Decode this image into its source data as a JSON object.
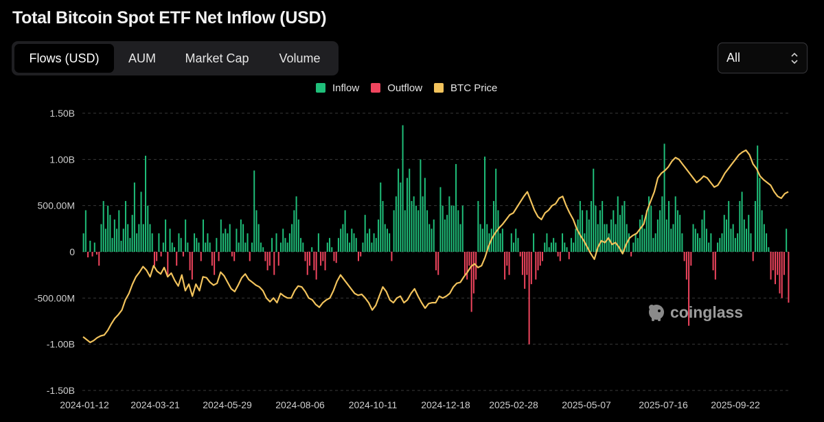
{
  "title": "Total Bitcoin Spot ETF Net Inflow (USD)",
  "tabs": [
    {
      "label": "Flows (USD)",
      "active": true
    },
    {
      "label": "AUM",
      "active": false
    },
    {
      "label": "Market Cap",
      "active": false
    },
    {
      "label": "Volume",
      "active": false
    }
  ],
  "range_select": {
    "value": "All"
  },
  "legend": [
    {
      "label": "Inflow",
      "color": "#1fbf7a"
    },
    {
      "label": "Outflow",
      "color": "#f0455e"
    },
    {
      "label": "BTC Price",
      "color": "#f2c35c"
    }
  ],
  "watermark": {
    "text": "coinglass",
    "icon": "coinglass-logo-icon"
  },
  "colors": {
    "inflow": "#1fbf7a",
    "outflow": "#f0455e",
    "price": "#f2c35c",
    "grid": "#3a3a3a",
    "axis_text": "#cfcfcf"
  },
  "chart_data": {
    "type": "bar",
    "title": "Total Bitcoin Spot ETF Net Inflow (USD)",
    "x_tick_labels": [
      "2024-01-12",
      "2024-03-21",
      "2024-05-29",
      "2024-08-06",
      "2024-10-11",
      "2024-12-18",
      "2025-02-28",
      "2025-05-07",
      "2025-07-16",
      "2025-09-22"
    ],
    "y_tick_labels": [
      "1.50B",
      "1.00B",
      "500.00M",
      "0",
      "-500.00M",
      "-1.00B",
      "-1.50B"
    ],
    "ylim": [
      -1500000000,
      1500000000
    ],
    "grid": "horizontal-dashed",
    "legend_position": "top-center",
    "series": [
      {
        "name": "Flows (USD)",
        "note_colors": "green for Inflow, red for Outflow",
        "values": [
          [
            0.2,
            0.45,
            -0.06,
            0.12,
            -0.05,
            0.1,
            -0.03,
            -0.15,
            0.3,
            0.55,
            0.25,
            0.5,
            0.4,
            0.15,
            0.35,
            0.25,
            0.45,
            0.12,
            0.25,
            0.55,
            0.3,
            0.15,
            0.4,
            0.75,
            0.2,
            0.3,
            0.65,
            0.3,
            1.04,
            0.5,
            0.3,
            0.2,
            -0.15,
            -0.1,
            0.2,
            -0.05,
            0.1,
            0.35,
            -0.25,
            0.25,
            0.1,
            0.05,
            -0.15,
            0.2,
            0.15,
            -0.05,
            0.35,
            0.1,
            -0.2,
            -0.3,
            0.2,
            0.15,
            0.1,
            -0.1,
            0.35,
            0.1,
            0.2,
            0.1,
            -0.15,
            -0.25,
            0.15,
            -0.1,
            0.35,
            0.2,
            0.25,
            0.2,
            0.3,
            -0.05,
            -0.1,
            0.25,
            0.1,
            0.35,
            0.3,
            0.1,
            0.2,
            -0.1,
            0.1,
            0.88,
            0.45,
            0.3,
            0.1,
            0.05,
            -0.1,
            -0.2,
            -0.15,
            0.15,
            -0.25,
            0.2,
            -0.15,
            0.1,
            0.25,
            0.15,
            0.1,
            0.2,
            0.3,
            0.45,
            0.6,
            0.35,
            0.15,
            0.1,
            -0.1,
            -0.25,
            -0.15,
            0.05,
            -0.2,
            -0.3,
            0.2,
            -0.15,
            -0.1,
            -0.2,
            0.1,
            0.15,
            0.05,
            -0.1,
            -0.12,
            0.15,
            0.25,
            0.3,
            0.45,
            0.2,
            0.1,
            0.25,
            0.2,
            0.15,
            -0.1,
            -0.05,
            0.1,
            0.4,
            0.2,
            0.25,
            0.1,
            0.2,
            0.15,
            0.35,
            0.75,
            0.55,
            0.3,
            0.25,
            0.2,
            -0.1,
            0.45,
            0.6,
            0.9,
            0.75,
            1.37,
            0.45,
            0.8,
            0.9,
            0.55,
            0.6,
            0.5,
            0.45,
            1.0,
            0.6,
            0.8,
            0.45,
            0.3,
            0.25,
            0.35,
            -0.2,
            -0.25,
            0.7,
            0.5,
            0.35,
            0.4,
            0.6,
            0.5,
            0.5,
            0.95,
            0.45,
            0.3,
            0.5,
            -0.25,
            -0.3,
            -0.15,
            -0.65,
            -0.45,
            -0.3,
            0.55,
            0.3,
            0.25,
            1.03,
            0.3,
            0.2,
            0.25,
            0.55,
            0.9,
            0.45,
            0.2,
            0.25,
            -0.3,
            -0.15,
            -0.25,
            0.2,
            0.1,
            0.25,
            0.15,
            -0.05,
            -0.25,
            -0.4,
            -0.25,
            -1.0,
            -0.35,
            0.2,
            -0.3,
            -0.2,
            -0.15,
            -0.1,
            0.1,
            0.2,
            0.05,
            0.1,
            0.15,
            0.1,
            -0.05,
            -0.1,
            0.2,
            0.1,
            0.05,
            -0.08,
            0.15,
            0.1,
            0.25,
            0.35,
            0.55,
            0.45,
            0.2,
            0.45,
            0.35,
            0.55,
            0.9,
            0.5,
            0.3,
            0.45,
            0.55,
            0.3,
            0.3,
            0.2,
            0.35,
            0.45,
            0.3,
            0.6,
            0.4,
            0.5,
            0.55,
            0.3,
            0.2,
            -0.05,
            0.1,
            0.2,
            0.15,
            0.35,
            0.4,
            0.25,
            0.45,
            0.6,
            0.5,
            0.15,
            0.2,
            0.35,
            0.45,
            0.6,
            1.17,
            0.35,
            0.55,
            0.25,
            0.3,
            0.6,
            0.45,
            0.4,
            0.2,
            -0.1,
            -0.3,
            -0.8,
            -0.15,
            0.3,
            0.25,
            0.2,
            0.15,
            0.35,
            0.45,
            0.25,
            0.1,
            0.2,
            -0.2,
            -0.3,
            0.1,
            0.15,
            0.2,
            0.4,
            0.35,
            0.55,
            0.25,
            0.3,
            0.15,
            0.2,
            0.55,
            0.65,
            0.35,
            0.25,
            0.4,
            0.2,
            -0.1,
            0.55,
            1.15,
            0.8,
            0.45,
            0.3,
            0.2,
            0.05,
            -0.3,
            -0.2,
            -0.35,
            -0.25,
            -0.45,
            -0.5,
            -0.25,
            0.25,
            -0.55
          ]
        ]
      },
      {
        "name": "BTC Price",
        "note": "plotted against the same axes; no separate price axis is printed",
        "values": [
          [
            -0.92,
            -0.95,
            -0.98,
            -0.96,
            -0.93,
            -0.91,
            -0.9,
            -0.85,
            -0.78,
            -0.72,
            -0.68,
            -0.63,
            -0.52,
            -0.45,
            -0.35,
            -0.27,
            -0.22,
            -0.16,
            -0.2,
            -0.27,
            -0.15,
            -0.21,
            -0.24,
            -0.17,
            -0.27,
            -0.23,
            -0.31,
            -0.37,
            -0.25,
            -0.42,
            -0.35,
            -0.48,
            -0.35,
            -0.42,
            -0.27,
            -0.28,
            -0.33,
            -0.36,
            -0.34,
            -0.22,
            -0.26,
            -0.33,
            -0.4,
            -0.43,
            -0.36,
            -0.28,
            -0.24,
            -0.3,
            -0.33,
            -0.36,
            -0.38,
            -0.42,
            -0.5,
            -0.54,
            -0.5,
            -0.55,
            -0.45,
            -0.48,
            -0.5,
            -0.5,
            -0.42,
            -0.37,
            -0.38,
            -0.43,
            -0.5,
            -0.52,
            -0.57,
            -0.6,
            -0.55,
            -0.52,
            -0.5,
            -0.42,
            -0.32,
            -0.25,
            -0.3,
            -0.35,
            -0.4,
            -0.45,
            -0.47,
            -0.46,
            -0.5,
            -0.55,
            -0.63,
            -0.58,
            -0.48,
            -0.38,
            -0.43,
            -0.52,
            -0.55,
            -0.5,
            -0.48,
            -0.55,
            -0.52,
            -0.45,
            -0.4,
            -0.48,
            -0.55,
            -0.61,
            -0.56,
            -0.55,
            -0.55,
            -0.48,
            -0.5,
            -0.48,
            -0.45,
            -0.38,
            -0.34,
            -0.33,
            -0.27,
            -0.22,
            -0.16,
            -0.13,
            -0.17,
            -0.15,
            -0.06,
            0.06,
            0.15,
            0.21,
            0.26,
            0.3,
            0.35,
            0.4,
            0.42,
            0.48,
            0.54,
            0.6,
            0.65,
            0.55,
            0.45,
            0.38,
            0.35,
            0.42,
            0.45,
            0.5,
            0.52,
            0.58,
            0.6,
            0.5,
            0.42,
            0.35,
            0.25,
            0.18,
            0.12,
            0.05,
            -0.02,
            -0.08,
            0.05,
            0.12,
            0.1,
            0.15,
            0.08,
            0.1,
            0.05,
            -0.02,
            0.08,
            0.15,
            0.18,
            0.2,
            0.25,
            0.3,
            0.45,
            0.55,
            0.65,
            0.8,
            0.85,
            0.88,
            0.92,
            0.98,
            1.02,
            1.0,
            0.95,
            0.9,
            0.85,
            0.8,
            0.75,
            0.78,
            0.82,
            0.8,
            0.75,
            0.7,
            0.72,
            0.78,
            0.85,
            0.9,
            0.95,
            1.0,
            1.05,
            1.08,
            1.1,
            1.05,
            0.95,
            0.9,
            0.82,
            0.78,
            0.75,
            0.72,
            0.65,
            0.6,
            0.58,
            0.63,
            0.65
          ]
        ]
      }
    ]
  }
}
